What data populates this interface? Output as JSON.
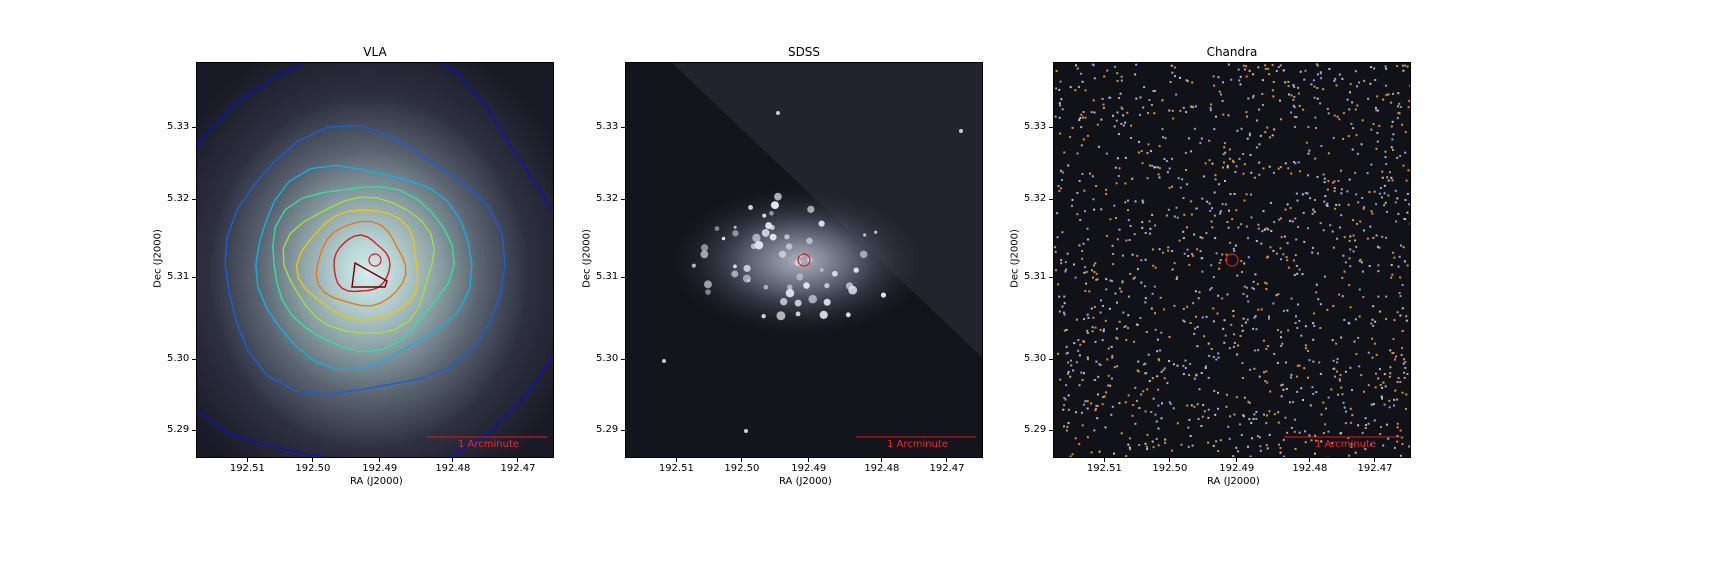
{
  "panels": [
    {
      "id": "vla",
      "title": "VLA",
      "xlabel": "RA (J2000)",
      "ylabel": "Dec (J2000)",
      "scalebar_label": "1 Arcminute"
    },
    {
      "id": "sdss",
      "title": "SDSS",
      "xlabel": "RA (J2000)",
      "ylabel": "Dec (J2000)",
      "scalebar_label": "1 Arcminute"
    },
    {
      "id": "chandra",
      "title": "Chandra",
      "xlabel": "RA (J2000)",
      "ylabel": "Dec (J2000)",
      "scalebar_label": "1 Arcminute"
    }
  ],
  "x_ticks": [
    "192.51",
    "192.50",
    "192.49",
    "192.48",
    "192.47"
  ],
  "y_ticks": [
    "5.33",
    "5.32",
    "5.31",
    "5.30",
    "5.29"
  ],
  "colors": {
    "marker": "#e01818",
    "scalebar": "#e01818",
    "contours": [
      "#0a10c8",
      "#1460e0",
      "#10b0e8",
      "#30e0a0",
      "#a0e040",
      "#f0c800",
      "#f07800",
      "#e01818",
      "#700000"
    ]
  }
}
